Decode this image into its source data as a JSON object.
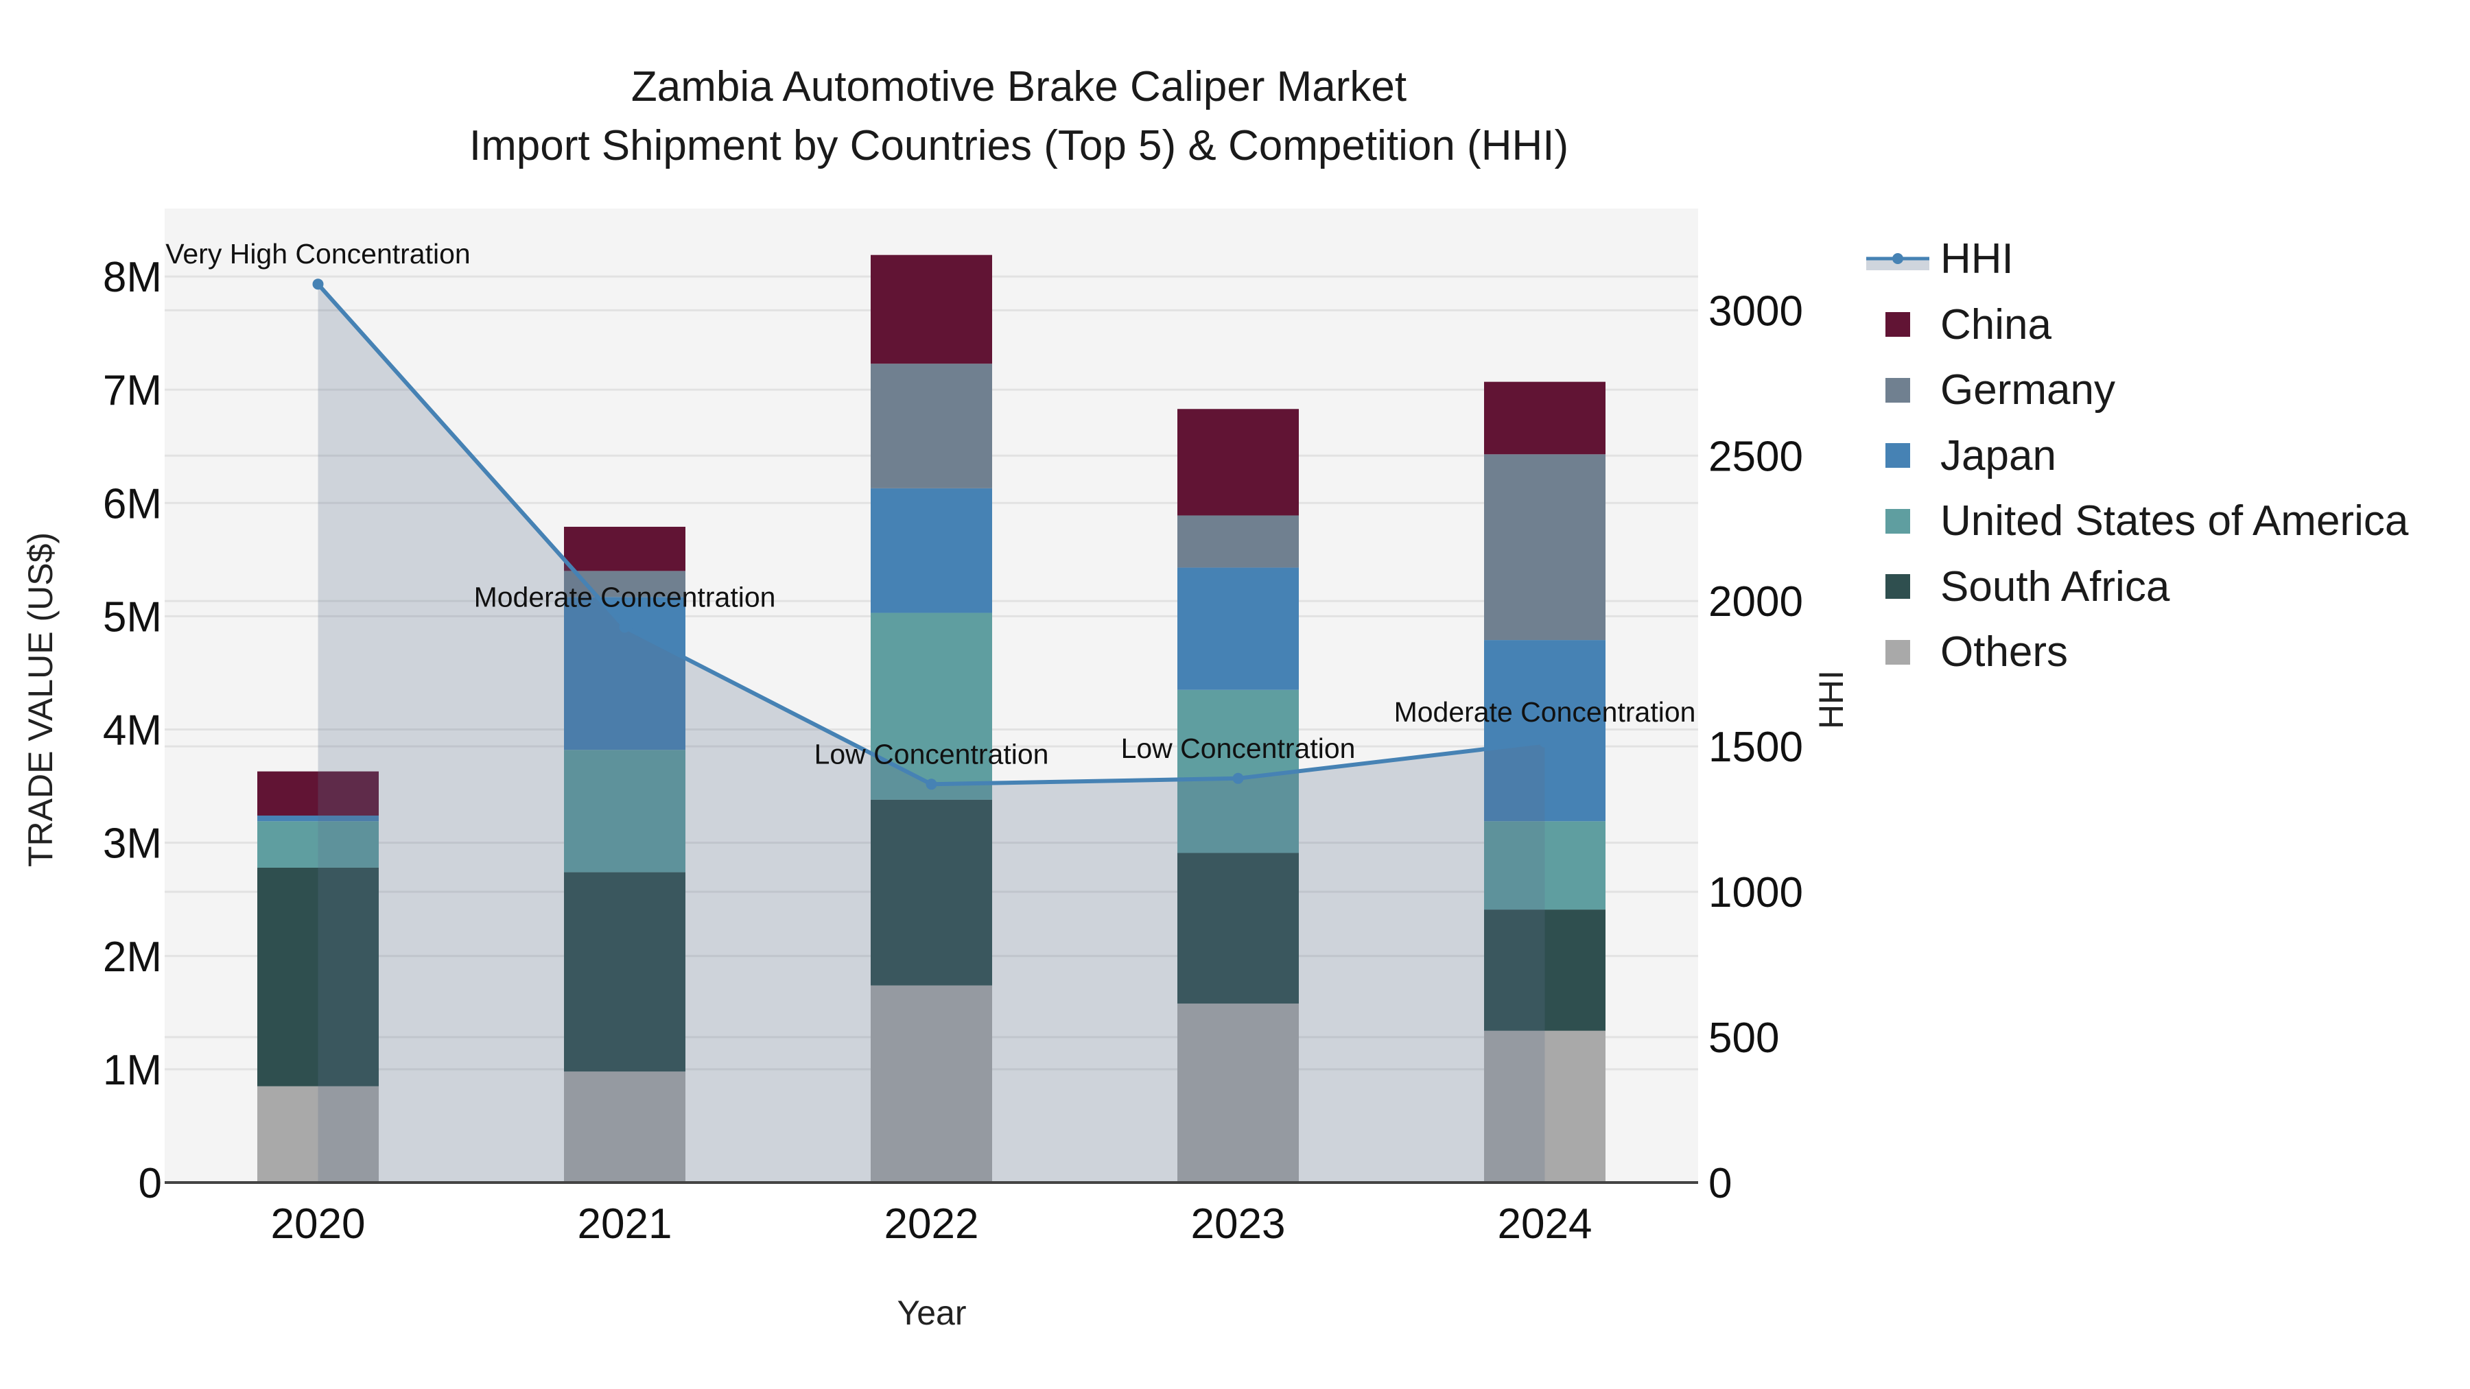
{
  "title": {
    "line1": "Zambia Automotive Brake Caliper Market",
    "line2": "Import Shipment by Countries (Top 5) & Competition (HHI)"
  },
  "axes": {
    "x_title": "Year",
    "y_title": "TRADE VALUE (US$)",
    "y2_title": "HHI"
  },
  "legend": {
    "items": [
      {
        "label": "HHI",
        "type": "line",
        "color": "#4682B4"
      },
      {
        "label": "China",
        "type": "box",
        "color": "#611434"
      },
      {
        "label": "Germany",
        "type": "box",
        "color": "#708090"
      },
      {
        "label": "Japan",
        "type": "box",
        "color": "#4682B4"
      },
      {
        "label": "United States of America",
        "type": "box",
        "color": "#5F9EA0"
      },
      {
        "label": "South Africa",
        "type": "box",
        "color": "#2F4F4F"
      },
      {
        "label": "Others",
        "type": "box",
        "color": "#A9A9A9"
      }
    ]
  },
  "colors": {
    "plot_bg": "#F4F4F4",
    "grid": "#E2E2E2",
    "hhi_line": "#4682B4",
    "hhi_fill": "rgba(90,110,140,0.25)"
  },
  "chart_data": {
    "type": "bar",
    "stacked": true,
    "title": "Zambia Automotive Brake Caliper Market — Import Shipment by Countries (Top 5) & Competition (HHI)",
    "xlabel": "Year",
    "ylabel": "TRADE VALUE (US$)",
    "y2label": "HHI",
    "categories": [
      "2020",
      "2021",
      "2022",
      "2023",
      "2024"
    ],
    "ylim": [
      0,
      8600000
    ],
    "y_ticks": [
      0,
      1000000,
      2000000,
      3000000,
      4000000,
      5000000,
      6000000,
      7000000,
      8000000
    ],
    "y_tick_labels": [
      "0",
      "1M",
      "2M",
      "3M",
      "4M",
      "5M",
      "6M",
      "7M",
      "8M"
    ],
    "y2lim": [
      0,
      3350
    ],
    "y2_ticks": [
      0,
      500,
      1000,
      1500,
      2000,
      2500,
      3000
    ],
    "y2_tick_labels": [
      "0",
      "500",
      "1000",
      "1500",
      "2000",
      "2500",
      "3000"
    ],
    "grid": true,
    "legend_position": "right",
    "series": [
      {
        "name": "Others",
        "color": "#A9A9A9",
        "values": [
          850000,
          980000,
          1740000,
          1580000,
          1340000
        ]
      },
      {
        "name": "South Africa",
        "color": "#2F4F4F",
        "values": [
          1930000,
          1760000,
          1640000,
          1330000,
          1070000
        ]
      },
      {
        "name": "United States of America",
        "color": "#5F9EA0",
        "values": [
          410000,
          1080000,
          1650000,
          1440000,
          780000
        ]
      },
      {
        "name": "Japan",
        "color": "#4682B4",
        "values": [
          50000,
          1350000,
          1100000,
          1080000,
          1600000
        ]
      },
      {
        "name": "Germany",
        "color": "#708090",
        "values": [
          0,
          230000,
          1100000,
          460000,
          1640000
        ]
      },
      {
        "name": "China",
        "color": "#611434",
        "values": [
          390000,
          390000,
          960000,
          940000,
          640000
        ]
      }
    ],
    "totals": [
      3630000,
      5790000,
      8190000,
      6830000,
      7070000
    ],
    "hhi": {
      "name": "HHI",
      "axis": "y2",
      "type": "line+area",
      "values": [
        3090,
        1910,
        1370,
        1390,
        1515
      ],
      "annotations": [
        "Very High Concentration",
        "Moderate Concentration",
        "Low Concentration",
        "Low Concentration",
        "Moderate Concentration"
      ]
    }
  }
}
